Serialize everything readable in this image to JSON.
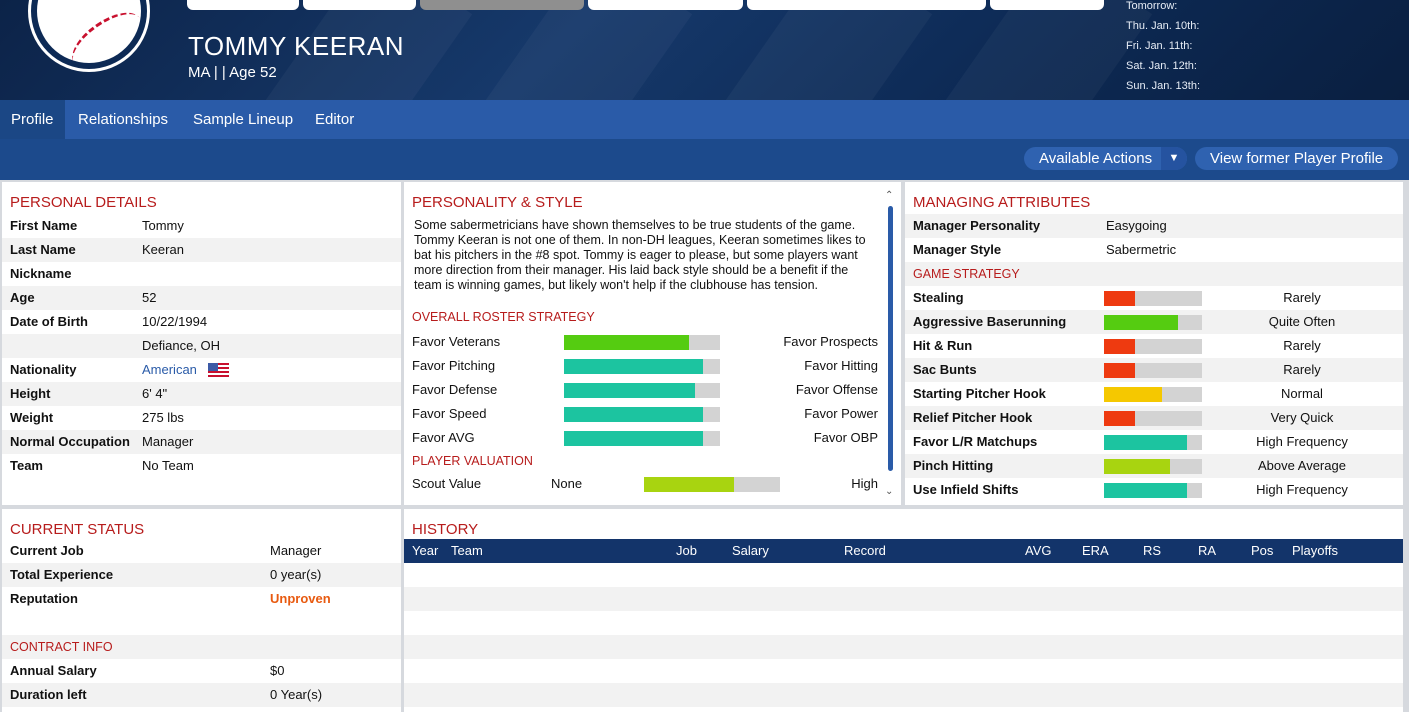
{
  "header": {
    "player_name": "TOMMY KEERAN",
    "subtitle": "MA |   | Age 52",
    "schedule": [
      "Tomorrow:",
      "Thu. Jan. 10th:",
      "Fri. Jan. 11th:",
      "Sat. Jan. 12th:",
      "Sun. Jan. 13th:"
    ]
  },
  "nav": {
    "tabs": [
      "Profile",
      "Relationships",
      "Sample Lineup",
      "Editor"
    ],
    "active": "Profile"
  },
  "actions": {
    "available_actions": "Available Actions",
    "view_former": "View former Player Profile"
  },
  "personal": {
    "title": "PERSONAL DETAILS",
    "rows": [
      {
        "label": "First Name",
        "value": "Tommy"
      },
      {
        "label": "Last Name",
        "value": "Keeran"
      },
      {
        "label": "Nickname",
        "value": ""
      },
      {
        "label": "Age",
        "value": "52"
      },
      {
        "label": "Date of Birth",
        "value": "10/22/1994"
      },
      {
        "label": "",
        "value": "Defiance, OH"
      },
      {
        "label": "Nationality",
        "value": "American"
      },
      {
        "label": "Height",
        "value": "6' 4\""
      },
      {
        "label": "Weight",
        "value": "275 lbs"
      },
      {
        "label": "Normal Occupation",
        "value": "Manager"
      },
      {
        "label": "Team",
        "value": "No Team"
      }
    ]
  },
  "personality": {
    "title": "PERSONALITY & STYLE",
    "description": "Some sabermetricians have shown themselves to be true students of the game. Tommy Keeran is not one of them. In non-DH leagues, Keeran sometimes likes to bat his pitchers in the #8 spot. Tommy is eager to please, but some players want more direction from their manager. His laid back style should be a benefit if the team is winning games, but likely won't help if the clubhouse has tension.",
    "roster_title": "OVERALL ROSTER STRATEGY",
    "roster": [
      {
        "left": "Favor Veterans",
        "right": "Favor Prospects",
        "fill": 0.8,
        "color": "#55cc11"
      },
      {
        "left": "Favor Pitching",
        "right": "Favor Hitting",
        "fill": 0.89,
        "color": "#1cc4a0"
      },
      {
        "left": "Favor Defense",
        "right": "Favor Offense",
        "fill": 0.84,
        "color": "#1cc4a0"
      },
      {
        "left": "Favor Speed",
        "right": "Favor Power",
        "fill": 0.89,
        "color": "#1cc4a0"
      },
      {
        "left": "Favor AVG",
        "right": "Favor OBP",
        "fill": 0.89,
        "color": "#1cc4a0"
      }
    ],
    "valuation_title": "PLAYER VALUATION",
    "valuation": [
      {
        "label": "Scout Value",
        "value": "None",
        "rating": "High",
        "fill": 0.66,
        "color": "#a8d410"
      }
    ]
  },
  "managing": {
    "title": "MANAGING ATTRIBUTES",
    "rows": [
      {
        "label": "Manager Personality",
        "value": "Easygoing"
      },
      {
        "label": "Manager Style",
        "value": "Sabermetric"
      }
    ],
    "strategy_title": "GAME STRATEGY",
    "strategy": [
      {
        "label": "Stealing",
        "value": "Rarely",
        "fill": 0.32,
        "color": "#ee3a10"
      },
      {
        "label": "Aggressive Baserunning",
        "value": "Quite Often",
        "fill": 0.76,
        "color": "#55cc11"
      },
      {
        "label": "Hit & Run",
        "value": "Rarely",
        "fill": 0.32,
        "color": "#ee3a10"
      },
      {
        "label": "Sac Bunts",
        "value": "Rarely",
        "fill": 0.32,
        "color": "#ee3a10"
      },
      {
        "label": "Starting Pitcher Hook",
        "value": "Normal",
        "fill": 0.59,
        "color": "#f5c800"
      },
      {
        "label": "Relief Pitcher Hook",
        "value": "Very Quick",
        "fill": 0.32,
        "color": "#ee3a10"
      },
      {
        "label": "Favor L/R Matchups",
        "value": "High Frequency",
        "fill": 0.85,
        "color": "#1cc4a0"
      },
      {
        "label": "Pinch Hitting",
        "value": "Above Average",
        "fill": 0.67,
        "color": "#a8d410"
      },
      {
        "label": "Use Infield Shifts",
        "value": "High Frequency",
        "fill": 0.85,
        "color": "#1cc4a0"
      }
    ]
  },
  "status": {
    "title": "CURRENT STATUS",
    "rows": [
      {
        "label": "Current Job",
        "value": "Manager"
      },
      {
        "label": "Total Experience",
        "value": "0 year(s)"
      },
      {
        "label": "Reputation",
        "value": "Unproven"
      }
    ],
    "contract_title": "CONTRACT INFO",
    "contract": [
      {
        "label": "Annual Salary",
        "value": "$0"
      },
      {
        "label": "Duration left",
        "value": "0 Year(s)"
      }
    ]
  },
  "history": {
    "title": "HISTORY",
    "columns": [
      "Year",
      "Team",
      "Job",
      "Salary",
      "Record",
      "AVG",
      "ERA",
      "RS",
      "RA",
      "Pos",
      "Playoffs"
    ]
  },
  "colors": {
    "accent_red": "#b71c1c",
    "nav_blue": "#2a5ba8",
    "header_navy": "#0d2a55",
    "reputation": "#e85a10"
  }
}
